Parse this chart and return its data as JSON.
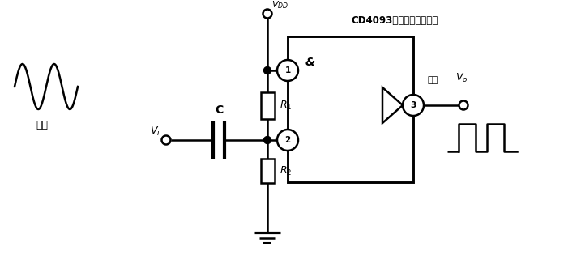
{
  "bg_color": "#ffffff",
  "line_color": "#000000",
  "fig_width": 7.01,
  "fig_height": 3.15,
  "dpi": 100,
  "label_vdd": "$V_{DD}$",
  "label_cd4093": "CD4093（施密特触发器）",
  "label_input_cn": "输入",
  "label_vi": "$V_i$",
  "label_c": "C",
  "label_r1": "$R_1$",
  "label_r2": "$R_2$",
  "label_and": "&",
  "label_output_cn": "输出",
  "label_vo": "$V_o$"
}
